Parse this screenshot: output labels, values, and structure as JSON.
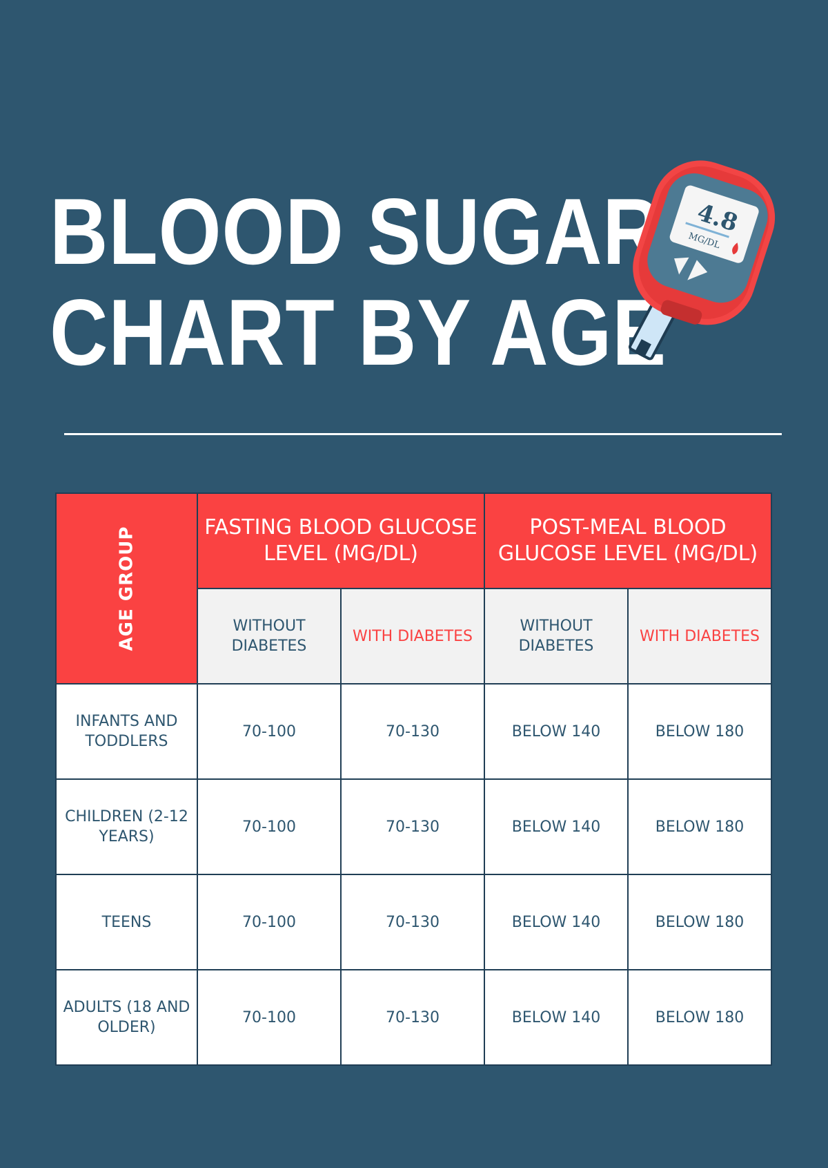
{
  "title": {
    "line1": "BLOOD SUGAR",
    "line2": "CHART BY AGE"
  },
  "meter": {
    "reading": "4.8",
    "unit": "MG/DL",
    "icon": "glucose-meter-icon",
    "colors": {
      "body": "#f24545",
      "screen": "#4d7a93",
      "display": "#f5f5f5",
      "strip": "#cfe6f7"
    }
  },
  "colors": {
    "background": "#2e566f",
    "accent": "#fa4242",
    "subheader_bg": "#f2f2f2",
    "cell_bg": "#ffffff",
    "text": "#2e566f"
  },
  "table": {
    "corner_label": "AGE GROUP",
    "groups": [
      {
        "label": "FASTING BLOOD GLUCOSE LEVEL (MG/DL)"
      },
      {
        "label": "POST-MEAL BLOOD GLUCOSE LEVEL (MG/DL)"
      }
    ],
    "subheaders": [
      "WITHOUT DIABETES",
      "WITH DIABETES",
      "WITHOUT DIABETES",
      "WITH DIABETES"
    ],
    "rows": [
      {
        "age": "INFANTS AND TODDLERS",
        "values": [
          "70-100",
          "70-130",
          "BELOW 140",
          "BELOW 180"
        ]
      },
      {
        "age": "CHILDREN (2-12 YEARS)",
        "values": [
          "70-100",
          "70-130",
          "BELOW 140",
          "BELOW 180"
        ]
      },
      {
        "age": "TEENS",
        "values": [
          "70-100",
          "70-130",
          "BELOW 140",
          "BELOW 180"
        ]
      },
      {
        "age": "ADULTS (18 AND OLDER)",
        "values": [
          "70-100",
          "70-130",
          "BELOW 140",
          "BELOW 180"
        ]
      }
    ]
  }
}
